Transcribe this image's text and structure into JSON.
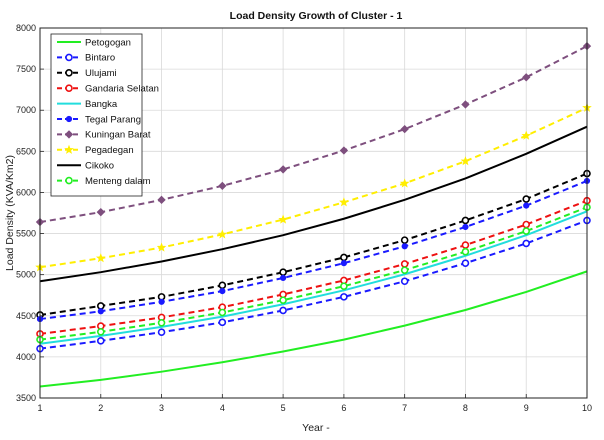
{
  "chart_data": {
    "type": "line",
    "title": "Load Density Growth of Cluster - 1",
    "xlabel": "Year -",
    "ylabel": "Load Density (KVA/Km2)",
    "xlim": [
      1,
      10
    ],
    "ylim": [
      3500,
      8000
    ],
    "xticks": [
      1,
      2,
      3,
      4,
      5,
      6,
      7,
      8,
      9,
      10
    ],
    "yticks": [
      3500,
      4000,
      4500,
      5000,
      5500,
      6000,
      6500,
      7000,
      7500,
      8000
    ],
    "grid": true,
    "legend_position": "top-left",
    "x": [
      1,
      2,
      3,
      4,
      5,
      6,
      7,
      8,
      9,
      10
    ],
    "series": [
      {
        "name": "Petogogan",
        "color": "#22ee22",
        "dash": "solid",
        "marker": "none",
        "values": [
          3640,
          3720,
          3820,
          3935,
          4065,
          4210,
          4380,
          4570,
          4790,
          5040
        ]
      },
      {
        "name": "Bintaro",
        "color": "#1a1aff",
        "dash": "dashed",
        "marker": "circle",
        "values": [
          4100,
          4195,
          4300,
          4420,
          4565,
          4730,
          4920,
          5140,
          5380,
          5660
        ]
      },
      {
        "name": "Ulujami",
        "color": "#000000",
        "dash": "dashed",
        "marker": "circle",
        "values": [
          4510,
          4620,
          4730,
          4870,
          5030,
          5210,
          5420,
          5660,
          5920,
          6230
        ]
      },
      {
        "name": "Gandaria Selatan",
        "color": "#ee1111",
        "dash": "dashed",
        "marker": "circle",
        "values": [
          4280,
          4375,
          4480,
          4605,
          4760,
          4930,
          5130,
          5360,
          5610,
          5900
        ]
      },
      {
        "name": "Bangka",
        "color": "#22dddd",
        "dash": "solid",
        "marker": "none",
        "values": [
          4160,
          4255,
          4365,
          4490,
          4640,
          4810,
          5005,
          5230,
          5480,
          5770
        ]
      },
      {
        "name": "Tegal Parang",
        "color": "#1a1aff",
        "dash": "dashed",
        "marker": "dot",
        "values": [
          4460,
          4555,
          4670,
          4800,
          4960,
          5140,
          5345,
          5580,
          5840,
          6140
        ]
      },
      {
        "name": "Kuningan Barat",
        "color": "#7e4f7e",
        "dash": "dashed",
        "marker": "diamond",
        "values": [
          5640,
          5760,
          5910,
          6080,
          6280,
          6510,
          6770,
          7070,
          7400,
          7780
        ]
      },
      {
        "name": "Pegadegan",
        "color": "#ffee00",
        "dash": "dashed",
        "marker": "star",
        "values": [
          5090,
          5200,
          5330,
          5490,
          5670,
          5880,
          6110,
          6380,
          6690,
          7030
        ]
      },
      {
        "name": "Cikoko",
        "color": "#000000",
        "dash": "solid",
        "marker": "none",
        "values": [
          4920,
          5030,
          5160,
          5310,
          5480,
          5680,
          5910,
          6170,
          6470,
          6800
        ]
      },
      {
        "name": "Menteng dalam",
        "color": "#22ee22",
        "dash": "dashed",
        "marker": "circle",
        "values": [
          4210,
          4305,
          4415,
          4540,
          4690,
          4860,
          5055,
          5280,
          5530,
          5820
        ]
      }
    ]
  }
}
